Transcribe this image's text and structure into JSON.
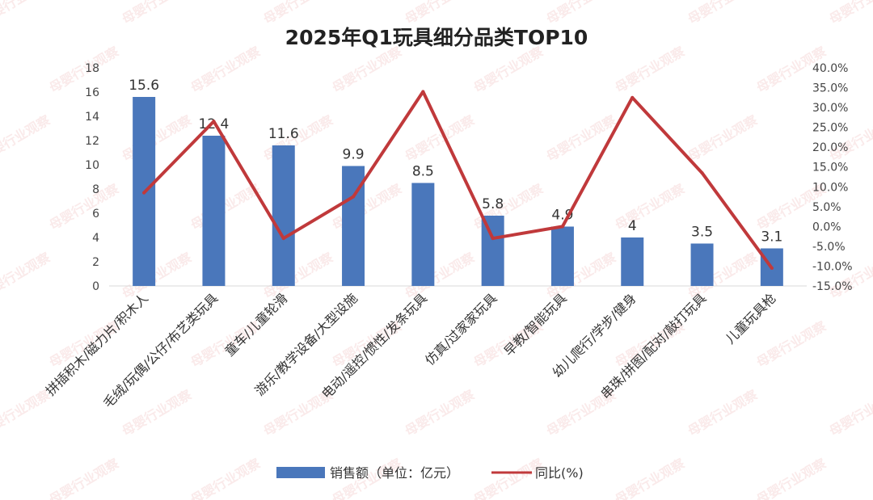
{
  "chart_data": {
    "type": "bar+line",
    "title": "2025年Q1玩具细分品类TOP10",
    "categories": [
      "拼插积木/磁力片/积木人",
      "毛绒/玩偶/公仔/布艺类玩具",
      "童车/儿童轮滑",
      "游乐/教学设备/大型设施",
      "电动/遥控/惯性/发条玩具",
      "仿真/过家家玩具",
      "早教/智能玩具",
      "幼儿爬行/学步/健身",
      "串珠/拼图/配对/敲打玩具",
      "儿童玩具枪"
    ],
    "series": [
      {
        "name": "销售额（单位：亿元）",
        "type": "bar",
        "axis": "left",
        "color": "#4a77bb",
        "values": [
          15.6,
          12.4,
          11.6,
          9.9,
          8.5,
          5.8,
          4.9,
          4,
          3.5,
          3.1
        ],
        "labels": [
          "15.6",
          "12.4",
          "11.6",
          "9.9",
          "8.5",
          "5.8",
          "4.9",
          "4",
          "3.5",
          "3.1"
        ]
      },
      {
        "name": "同比(%)",
        "type": "line",
        "axis": "right",
        "color": "#c0393b",
        "values": [
          8.5,
          26.5,
          -3.0,
          7.5,
          34.0,
          -3.0,
          0.0,
          32.5,
          13.5,
          -10.5
        ]
      }
    ],
    "y_left": {
      "range": [
        0,
        18
      ],
      "ticks": [
        0,
        2,
        4,
        6,
        8,
        10,
        12,
        14,
        16,
        18
      ],
      "tick_labels": [
        "0",
        "2",
        "4",
        "6",
        "8",
        "10",
        "12",
        "14",
        "16",
        "18"
      ]
    },
    "y_right": {
      "range": [
        -15,
        40
      ],
      "ticks": [
        -15,
        -10,
        -5,
        0,
        5,
        10,
        15,
        20,
        25,
        30,
        35,
        40
      ],
      "tick_labels": [
        "-15.0%",
        "-10.0%",
        "-5.0%",
        "0.0%",
        "5.0%",
        "10.0%",
        "15.0%",
        "20.0%",
        "25.0%",
        "30.0%",
        "35.0%",
        "40.0%"
      ]
    },
    "legend": {
      "position": "bottom-center",
      "items": [
        "销售额（单位：亿元）",
        "同比(%)"
      ]
    },
    "watermark": "母婴行业观察"
  }
}
